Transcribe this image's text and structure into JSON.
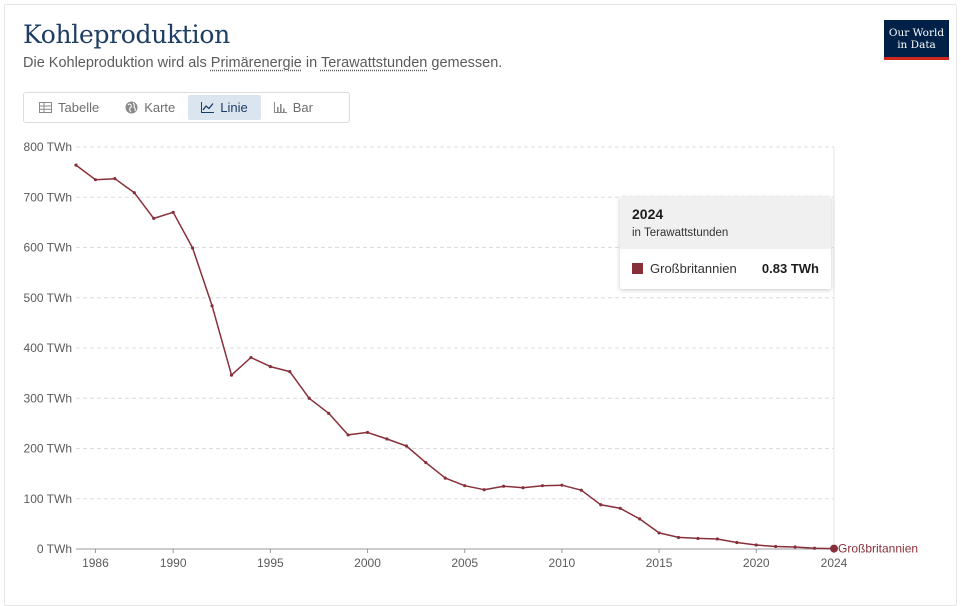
{
  "header": {
    "title": "Kohleproduktion",
    "subtitle_pre": "Die Kohleproduktion wird als ",
    "subtitle_link1": "Primärenergie",
    "subtitle_mid": " in ",
    "subtitle_link2": "Terawattstunden",
    "subtitle_post": " gemessen.",
    "logo_line1": "Our World",
    "logo_line2": "in Data"
  },
  "tabs": [
    {
      "label": "Tabelle",
      "icon": "table-icon"
    },
    {
      "label": "Karte",
      "icon": "globe-icon"
    },
    {
      "label": "Linie",
      "icon": "line-chart-icon"
    },
    {
      "label": "Bar",
      "icon": "bar-chart-icon"
    }
  ],
  "active_tab": "Linie",
  "tooltip": {
    "year": "2024",
    "unit": "in Terawattstunden",
    "entity": "Großbritannien",
    "value": "0.83 TWh"
  },
  "colors": {
    "series": "#883039",
    "accent": "#1d3d63",
    "logo": "#002147",
    "logo_stripe": "#ce261e"
  },
  "chart_data": {
    "type": "line",
    "title": "Kohleproduktion",
    "ylabel": "TWh",
    "ylim": [
      0,
      800
    ],
    "xlim": [
      1985,
      2024
    ],
    "yticks": [
      0,
      100,
      200,
      300,
      400,
      500,
      600,
      700,
      800
    ],
    "ytick_labels": [
      "0 TWh",
      "100 TWh",
      "200 TWh",
      "300 TWh",
      "400 TWh",
      "500 TWh",
      "600 TWh",
      "700 TWh",
      "800 TWh"
    ],
    "xticks": [
      1986,
      1990,
      1995,
      2000,
      2005,
      2010,
      2015,
      2020,
      2024
    ],
    "xtick_labels": [
      "1986",
      "1990",
      "1995",
      "2000",
      "2005",
      "2010",
      "2015",
      "2020",
      "2024"
    ],
    "grid": true,
    "series": [
      {
        "name": "Großbritannien",
        "x": [
          1985,
          1986,
          1987,
          1988,
          1989,
          1990,
          1991,
          1992,
          1993,
          1994,
          1995,
          1996,
          1997,
          1998,
          1999,
          2000,
          2001,
          2002,
          2003,
          2004,
          2005,
          2006,
          2007,
          2008,
          2009,
          2010,
          2011,
          2012,
          2013,
          2014,
          2015,
          2016,
          2017,
          2018,
          2019,
          2020,
          2021,
          2022,
          2023,
          2024
        ],
        "values": [
          764,
          735,
          737,
          709,
          658,
          670,
          599,
          484,
          346,
          381,
          363,
          353,
          300,
          270,
          227,
          232,
          219,
          205,
          172,
          141,
          126,
          118,
          125,
          122,
          126,
          127,
          117,
          88,
          81,
          60,
          32,
          23,
          21,
          20,
          13,
          8,
          5,
          4,
          1.5,
          0.83
        ]
      }
    ]
  }
}
